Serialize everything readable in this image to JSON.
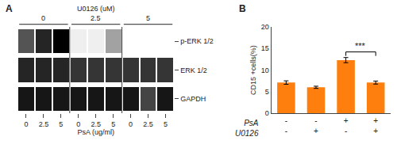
{
  "chart_data": [
    {
      "type": "heatmap",
      "title": "A",
      "x": [
        "0",
        "2.5",
        "5",
        "0",
        "2.5",
        "5",
        "0",
        "2.5",
        "5"
      ],
      "xlabel": "PsA (ug/ml)",
      "x2ticks": [
        "0",
        "2.5",
        "5"
      ],
      "x2label": "U0126 (uM)",
      "categories": [
        "p-ERK 1/2",
        "ERK 1/2",
        "GAPDH"
      ],
      "values": [
        [
          0.55,
          0.7,
          0.82,
          0.05,
          0.05,
          0.3,
          0.0,
          0.0,
          0.0
        ],
        [
          0.7,
          0.7,
          0.7,
          0.65,
          0.65,
          0.65,
          0.65,
          0.65,
          0.65
        ],
        [
          0.75,
          0.75,
          0.75,
          0.75,
          0.75,
          0.75,
          0.75,
          0.6,
          0.75
        ]
      ]
    },
    {
      "type": "bar",
      "title": "B",
      "categories": [
        [
          "-",
          "-"
        ],
        [
          "-",
          "+"
        ],
        [
          "+",
          "-"
        ],
        [
          "+",
          "+"
        ]
      ],
      "xlabel": [
        "PsA",
        "U0126"
      ],
      "values": [
        7.1,
        6.0,
        12.3,
        7.1
      ],
      "errors": [
        0.4,
        0.25,
        0.6,
        0.35
      ],
      "ylabel": "CD15 +cells(%)",
      "ylim": [
        0,
        20
      ],
      "yticks": [
        0,
        5,
        10,
        15,
        20
      ],
      "grid": false,
      "annotations": [
        {
          "text": "***",
          "x": [
            2,
            3
          ],
          "y": 14.2
        }
      ]
    }
  ]
}
